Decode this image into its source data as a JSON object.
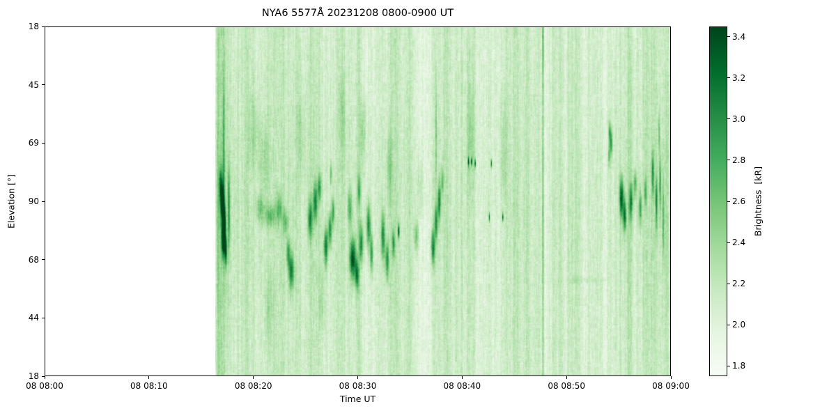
{
  "figure": {
    "title": "NYA6 5577Å 20231208 0800-0900 UT",
    "xlabel": "Time UT",
    "ylabel": "Elevation [°]",
    "colorbar_label": "Brightness  [kR]"
  },
  "chart_data": {
    "type": "heatmap",
    "title": "NYA6 5577Å 20231208 0800-0900 UT",
    "xlabel": "Time UT",
    "ylabel": "Elevation [°]",
    "x_tick_labels": [
      "08 08:00",
      "08 08:10",
      "08 08:20",
      "08 08:30",
      "08 08:40",
      "08 08:50",
      "08 09:00"
    ],
    "y_tick_labels": [
      "18",
      "45",
      "69",
      "90",
      "68",
      "44",
      "18"
    ],
    "x_range_minutes": [
      0,
      60
    ],
    "elevation_scan_deg": [
      18,
      90,
      18
    ],
    "colormap": "Greens",
    "colormap_anchors": [
      "#f7fcf5",
      "#e5f5e0",
      "#c7e9c0",
      "#a1d99b",
      "#74c476",
      "#41ab5d",
      "#238b45",
      "#006d2c",
      "#00441b"
    ],
    "no_data_color": "#ffffff",
    "colorbar": {
      "label": "Brightness  [kR]",
      "tick_values": [
        3.4,
        3.2,
        3.0,
        2.8,
        2.6,
        2.4,
        2.2,
        2.0,
        1.8
      ],
      "vmin": 1.75,
      "vmax": 3.45
    },
    "data_start_minute": 16.3,
    "background_level": 1.86,
    "column_bands_format": "[t_min, sigma_min, amplitude_kR]",
    "column_bands": [
      [
        16.55,
        0.12,
        0.3
      ],
      [
        17.2,
        0.7,
        0.32
      ],
      [
        18.3,
        0.35,
        0.18
      ],
      [
        19.3,
        0.4,
        0.1
      ],
      [
        20.7,
        1.2,
        0.14
      ],
      [
        23.5,
        0.8,
        0.14
      ],
      [
        26.0,
        1.6,
        0.13
      ],
      [
        29.8,
        1.8,
        0.16
      ],
      [
        33.0,
        1.2,
        0.12
      ],
      [
        35.0,
        0.8,
        0.08
      ],
      [
        37.6,
        1.0,
        0.16
      ],
      [
        40.2,
        1.2,
        0.08
      ],
      [
        42.5,
        0.8,
        0.06
      ],
      [
        44.8,
        1.0,
        0.1
      ],
      [
        46.3,
        0.6,
        0.08
      ],
      [
        47.75,
        0.07,
        0.55
      ],
      [
        49.0,
        0.5,
        0.06
      ],
      [
        50.8,
        1.0,
        0.09
      ],
      [
        53.0,
        1.0,
        0.07
      ],
      [
        55.6,
        1.4,
        0.15
      ],
      [
        58.6,
        1.2,
        0.18
      ],
      [
        59.6,
        0.3,
        0.22
      ]
    ],
    "features_format": "[t_min, elev_frac_from_top, amplitude_kR, sigma_t_min, sigma_elev_frac]",
    "features": [
      [
        16.8,
        0.45,
        0.7,
        0.15,
        0.05
      ],
      [
        16.95,
        0.5,
        1.2,
        0.18,
        0.06
      ],
      [
        17.05,
        0.61,
        1.3,
        0.18,
        0.045
      ],
      [
        17.15,
        0.56,
        1.4,
        0.15,
        0.05
      ],
      [
        17.3,
        0.64,
        1.1,
        0.12,
        0.04
      ],
      [
        17.1,
        0.35,
        0.5,
        0.1,
        0.25
      ],
      [
        17.6,
        0.52,
        0.8,
        0.1,
        0.12
      ],
      [
        20.0,
        0.3,
        0.22,
        0.5,
        0.1
      ],
      [
        20.6,
        0.52,
        0.45,
        0.4,
        0.035
      ],
      [
        21.0,
        0.38,
        0.22,
        0.5,
        0.1
      ],
      [
        21.5,
        0.8,
        0.18,
        0.4,
        0.1
      ],
      [
        21.6,
        0.54,
        0.5,
        0.5,
        0.03
      ],
      [
        22.4,
        0.52,
        0.55,
        0.3,
        0.04
      ],
      [
        23.0,
        0.56,
        0.5,
        0.25,
        0.035
      ],
      [
        23.3,
        0.65,
        0.6,
        0.2,
        0.04
      ],
      [
        23.6,
        0.7,
        0.95,
        0.25,
        0.05
      ],
      [
        24.5,
        0.3,
        0.2,
        0.4,
        0.12
      ],
      [
        25.4,
        0.55,
        0.85,
        0.22,
        0.05
      ],
      [
        25.9,
        0.5,
        0.9,
        0.2,
        0.05
      ],
      [
        26.3,
        0.46,
        0.7,
        0.18,
        0.04
      ],
      [
        26.5,
        0.78,
        0.2,
        0.3,
        0.08
      ],
      [
        26.9,
        0.63,
        1.0,
        0.2,
        0.05
      ],
      [
        27.3,
        0.58,
        0.9,
        0.18,
        0.045
      ],
      [
        27.6,
        0.53,
        0.7,
        0.15,
        0.04
      ],
      [
        27.4,
        0.42,
        0.5,
        0.12,
        0.03
      ],
      [
        28.5,
        0.25,
        0.25,
        0.3,
        0.12
      ],
      [
        29.2,
        0.52,
        0.6,
        0.2,
        0.05
      ],
      [
        29.5,
        0.665,
        1.3,
        0.3,
        0.055
      ],
      [
        29.9,
        0.71,
        0.9,
        0.2,
        0.04
      ],
      [
        30.1,
        0.47,
        0.6,
        0.15,
        0.04
      ],
      [
        30.3,
        0.62,
        0.9,
        0.2,
        0.05
      ],
      [
        30.5,
        0.3,
        0.3,
        0.3,
        0.1
      ],
      [
        31.0,
        0.57,
        0.95,
        0.22,
        0.06
      ],
      [
        31.3,
        0.65,
        0.8,
        0.15,
        0.05
      ],
      [
        32.4,
        0.6,
        0.9,
        0.2,
        0.06
      ],
      [
        32.8,
        0.67,
        0.85,
        0.18,
        0.05
      ],
      [
        33.0,
        0.4,
        0.3,
        0.3,
        0.1
      ],
      [
        33.4,
        0.62,
        0.7,
        0.15,
        0.04
      ],
      [
        33.9,
        0.585,
        1.2,
        0.08,
        0.018
      ],
      [
        35.6,
        0.6,
        0.55,
        0.2,
        0.04
      ],
      [
        36.0,
        0.45,
        0.25,
        0.3,
        0.1
      ],
      [
        37.2,
        0.63,
        0.95,
        0.18,
        0.05
      ],
      [
        37.5,
        0.56,
        0.85,
        0.15,
        0.05
      ],
      [
        37.8,
        0.5,
        0.9,
        0.15,
        0.05
      ],
      [
        37.5,
        0.3,
        0.45,
        0.08,
        0.15
      ],
      [
        38.1,
        0.44,
        0.6,
        0.12,
        0.04
      ],
      [
        40.6,
        0.385,
        1.3,
        0.06,
        0.012
      ],
      [
        40.9,
        0.385,
        1.2,
        0.06,
        0.012
      ],
      [
        41.25,
        0.39,
        1.3,
        0.06,
        0.012
      ],
      [
        42.8,
        0.39,
        1.2,
        0.06,
        0.012
      ],
      [
        40.8,
        0.3,
        0.25,
        0.4,
        0.15
      ],
      [
        42.6,
        0.545,
        1.3,
        0.05,
        0.012
      ],
      [
        43.9,
        0.545,
        1.3,
        0.05,
        0.012
      ],
      [
        44.0,
        0.35,
        0.2,
        0.4,
        0.15
      ],
      [
        47.75,
        0.05,
        0.5,
        0.06,
        0.08
      ],
      [
        52.0,
        0.725,
        0.12,
        2.0,
        0.008
      ],
      [
        54.15,
        0.3,
        0.6,
        0.1,
        0.03
      ],
      [
        54.3,
        0.33,
        0.8,
        0.15,
        0.04
      ],
      [
        54.1,
        0.37,
        0.5,
        0.1,
        0.03
      ],
      [
        55.3,
        0.49,
        1.2,
        0.2,
        0.055
      ],
      [
        55.6,
        0.54,
        1.0,
        0.15,
        0.045
      ],
      [
        56.2,
        0.5,
        0.85,
        0.18,
        0.05
      ],
      [
        56.6,
        0.45,
        0.7,
        0.15,
        0.04
      ],
      [
        57.1,
        0.52,
        0.7,
        0.15,
        0.05
      ],
      [
        57.6,
        0.47,
        0.6,
        0.12,
        0.04
      ],
      [
        58.3,
        0.42,
        0.75,
        0.12,
        0.06
      ],
      [
        58.65,
        0.5,
        0.9,
        0.1,
        0.07
      ],
      [
        59.0,
        0.45,
        0.7,
        0.1,
        0.08
      ],
      [
        59.3,
        0.55,
        0.6,
        0.08,
        0.1
      ],
      [
        58.9,
        0.3,
        0.5,
        0.08,
        0.05
      ]
    ]
  }
}
